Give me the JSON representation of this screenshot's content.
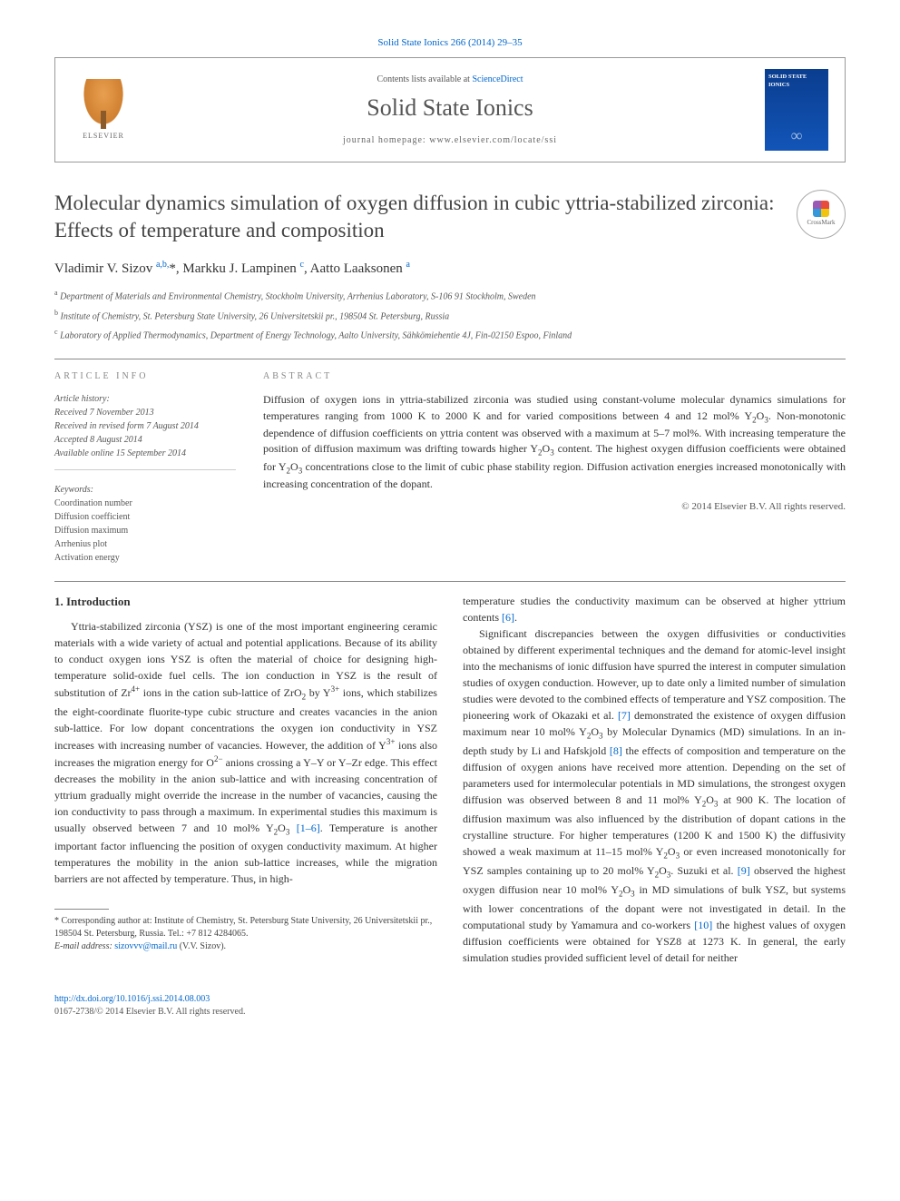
{
  "journal": {
    "citation": "Solid State Ionics 266 (2014) 29–35",
    "contents_prefix": "Contents lists available at ",
    "contents_link": "ScienceDirect",
    "name": "Solid State Ionics",
    "homepage_prefix": "journal homepage: ",
    "homepage": "www.elsevier.com/locate/ssi",
    "publisher": "ELSEVIER",
    "cover_title": "SOLID STATE IONICS"
  },
  "crossmark_label": "CrossMark",
  "article": {
    "title": "Molecular dynamics simulation of oxygen diffusion in cubic yttria-stabilized zirconia: Effects of temperature and composition",
    "authors_html": "Vladimir V. Sizov <sup>a,b,</sup>*, Markku J. Lampinen <sup>c</sup>, Aatto Laaksonen <sup>a</sup>",
    "affiliations": [
      {
        "sup": "a",
        "text": "Department of Materials and Environmental Chemistry, Stockholm University, Arrhenius Laboratory, S-106 91 Stockholm, Sweden"
      },
      {
        "sup": "b",
        "text": "Institute of Chemistry, St. Petersburg State University, 26 Universitetskii pr., 198504 St. Petersburg, Russia"
      },
      {
        "sup": "c",
        "text": "Laboratory of Applied Thermodynamics, Department of Energy Technology, Aalto University, Sähkömiehentie 4J, Fin-02150 Espoo, Finland"
      }
    ]
  },
  "info": {
    "heading": "ARTICLE INFO",
    "history_label": "Article history:",
    "history": [
      "Received 7 November 2013",
      "Received in revised form 7 August 2014",
      "Accepted 8 August 2014",
      "Available online 15 September 2014"
    ],
    "keywords_label": "Keywords:",
    "keywords": [
      "Coordination number",
      "Diffusion coefficient",
      "Diffusion maximum",
      "Arrhenius plot",
      "Activation energy"
    ]
  },
  "abstract": {
    "heading": "ABSTRACT",
    "text": "Diffusion of oxygen ions in yttria-stabilized zirconia was studied using constant-volume molecular dynamics simulations for temperatures ranging from 1000 K to 2000 K and for varied compositions between 4 and 12 mol% Y₂O₃. Non-monotonic dependence of diffusion coefficients on yttria content was observed with a maximum at 5–7 mol%. With increasing temperature the position of diffusion maximum was drifting towards higher Y₂O₃ content. The highest oxygen diffusion coefficients were obtained for Y₂O₃ concentrations close to the limit of cubic phase stability region. Diffusion activation energies increased monotonically with increasing concentration of the dopant.",
    "copyright": "© 2014 Elsevier B.V. All rights reserved."
  },
  "body": {
    "section_number": "1.",
    "section_title": "Introduction",
    "p1": "Yttria-stabilized zirconia (YSZ) is one of the most important engineering ceramic materials with a wide variety of actual and potential applications. Because of its ability to conduct oxygen ions YSZ is often the material of choice for designing high-temperature solid-oxide fuel cells. The ion conduction in YSZ is the result of substitution of Zr⁴⁺ ions in the cation sub-lattice of ZrO₂ by Y³⁺ ions, which stabilizes the eight-coordinate fluorite-type cubic structure and creates vacancies in the anion sub-lattice. For low dopant concentrations the oxygen ion conductivity in YSZ increases with increasing number of vacancies. However, the addition of Y³⁺ ions also increases the migration energy for O²⁻ anions crossing a Y–Y or Y–Zr edge. This effect decreases the mobility in the anion sub-lattice and with increasing concentration of yttrium gradually might override the increase in the number of vacancies, causing the ion conductivity to pass through a maximum. In experimental studies this maximum is usually observed between 7 and 10 mol% Y₂O₃ [1–6]. Temperature is another important factor influencing the position of oxygen conductivity maximum. At higher temperatures the mobility in the anion sub-lattice increases, while the migration barriers are not affected by temperature. Thus, in high-",
    "p1b": "temperature studies the conductivity maximum can be observed at higher yttrium contents [6].",
    "p2": "Significant discrepancies between the oxygen diffusivities or conductivities obtained by different experimental techniques and the demand for atomic-level insight into the mechanisms of ionic diffusion have spurred the interest in computer simulation studies of oxygen conduction. However, up to date only a limited number of simulation studies were devoted to the combined effects of temperature and YSZ composition. The pioneering work of Okazaki et al. [7] demonstrated the existence of oxygen diffusion maximum near 10 mol% Y₂O₃ by Molecular Dynamics (MD) simulations. In an in-depth study by Li and Hafskjold [8] the effects of composition and temperature on the diffusion of oxygen anions have received more attention. Depending on the set of parameters used for intermolecular potentials in MD simulations, the strongest oxygen diffusion was observed between 8 and 11 mol% Y₂O₃ at 900 K. The location of diffusion maximum was also influenced by the distribution of dopant cations in the crystalline structure. For higher temperatures (1200 K and 1500 K) the diffusivity showed a weak maximum at 11–15 mol% Y₂O₃ or even increased monotonically for YSZ samples containing up to 20 mol% Y₂O₃. Suzuki et al. [9] observed the highest oxygen diffusion near 10 mol% Y₂O₃ in MD simulations of bulk YSZ, but systems with lower concentrations of the dopant were not investigated in detail. In the computational study by Yamamura and co-workers [10] the highest values of oxygen diffusion coefficients were obtained for YSZ8 at 1273 K. In general, the early simulation studies provided sufficient level of detail for neither"
  },
  "footnote": {
    "corresponding": "* Corresponding author at: Institute of Chemistry, St. Petersburg State University, 26 Universitetskii pr., 198504 St. Petersburg, Russia. Tel.: +7 812 4284065.",
    "email_label": "E-mail address: ",
    "email": "sizovvv@mail.ru",
    "email_suffix": " (V.V. Sizov)."
  },
  "footer": {
    "doi": "http://dx.doi.org/10.1016/j.ssi.2014.08.003",
    "issn_line": "0167-2738/© 2014 Elsevier B.V. All rights reserved."
  },
  "colors": {
    "link": "#0066cc",
    "text": "#333333",
    "muted": "#555555",
    "rule": "#888888",
    "cover_bg": "#0a3d8f"
  }
}
